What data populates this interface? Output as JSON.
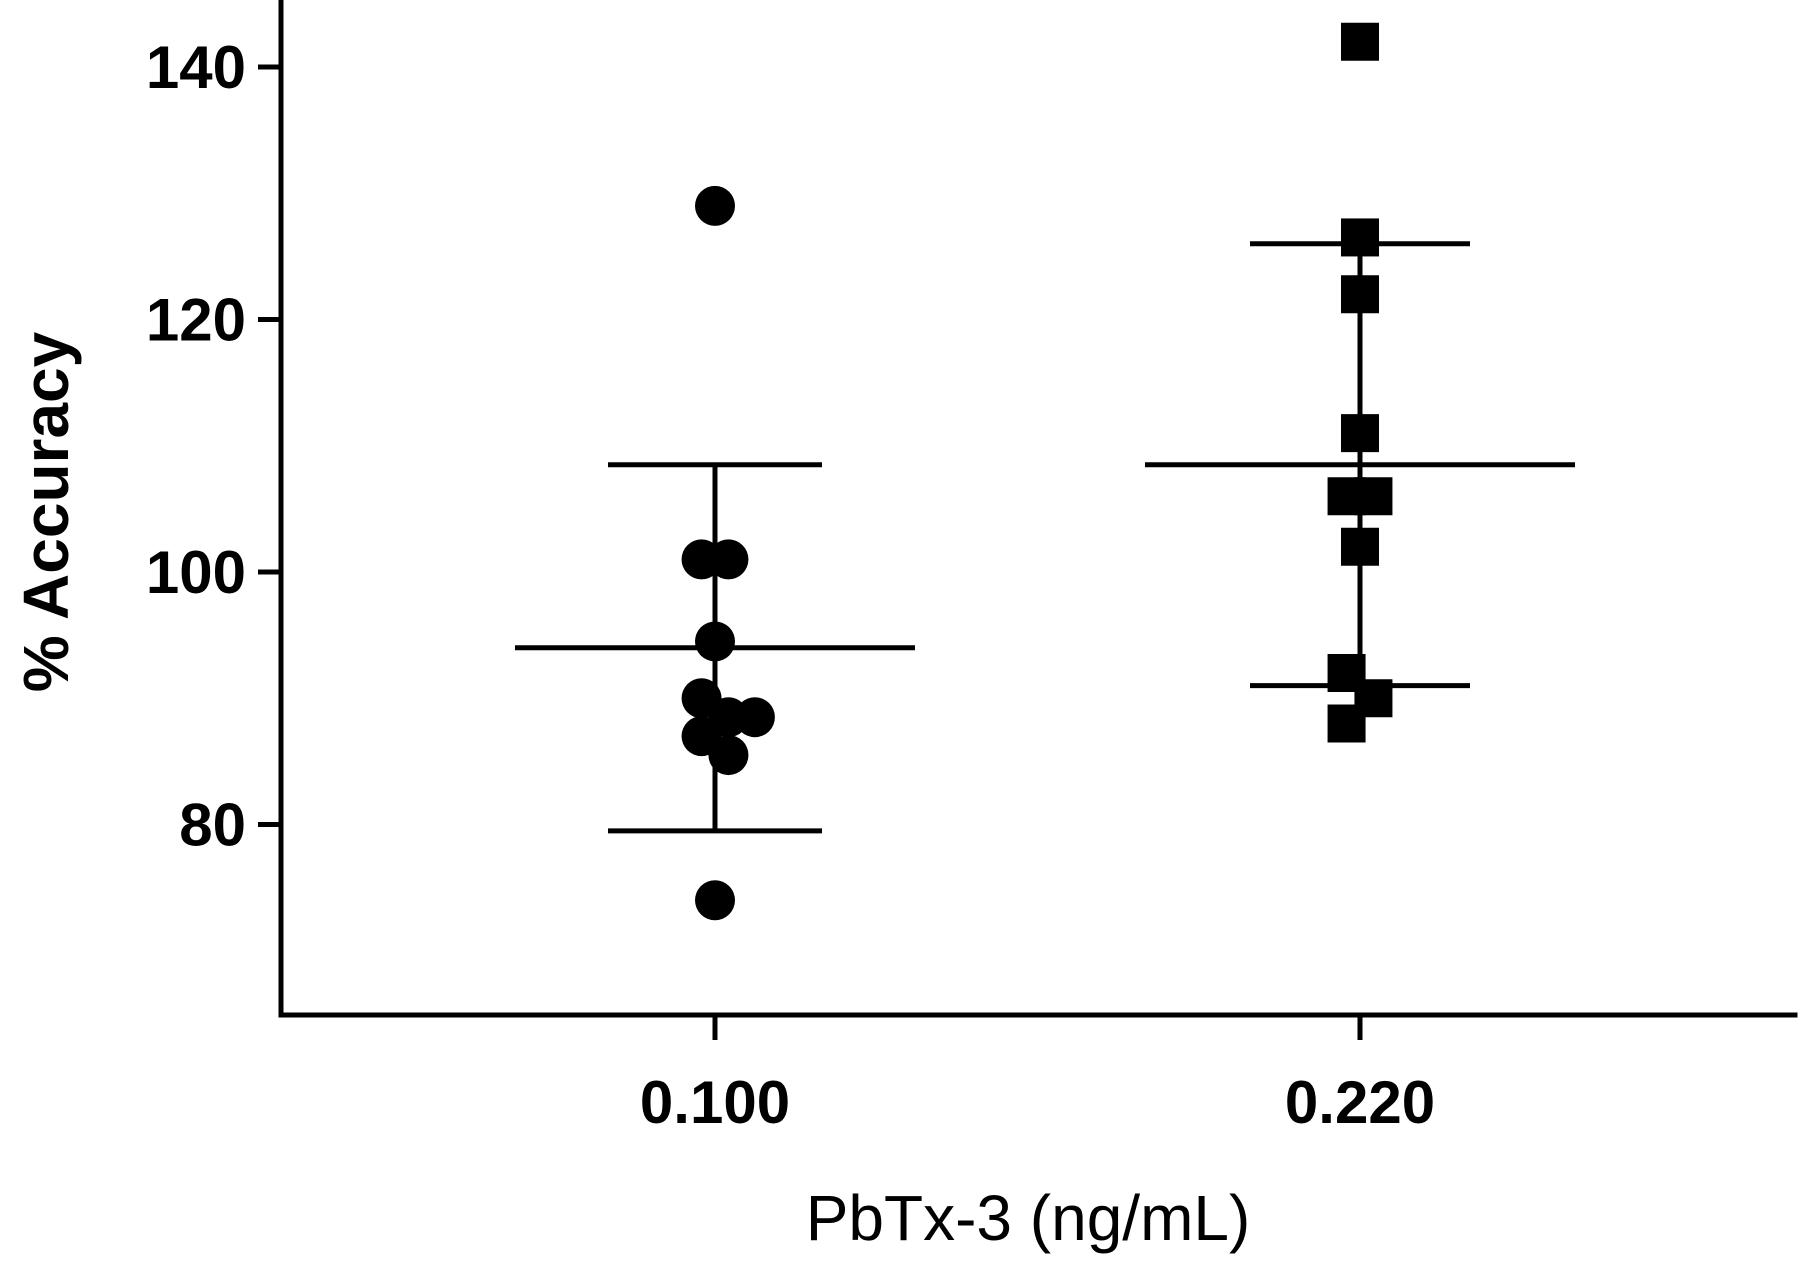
{
  "chart_data": {
    "type": "scatter",
    "title": "",
    "xlabel": "PbTx-3 (ng/mL)",
    "ylabel": "% Accuracy",
    "ylim": [
      65,
      145
    ],
    "yticks": [
      80,
      100,
      120,
      140
    ],
    "categories": [
      "0.100",
      "0.220"
    ],
    "grid": false,
    "groups": [
      {
        "category": "0.100",
        "marker": "circle",
        "points": [
          {
            "offset": 0.0,
            "y": 129
          },
          {
            "offset": -0.32,
            "y": 101
          },
          {
            "offset": 0.32,
            "y": 101
          },
          {
            "offset": 0.0,
            "y": 94.5
          },
          {
            "offset": -0.32,
            "y": 90
          },
          {
            "offset": -0.32,
            "y": 87
          },
          {
            "offset": 0.32,
            "y": 88.5
          },
          {
            "offset": 0.95,
            "y": 88.5
          },
          {
            "offset": 0.32,
            "y": 85.5
          },
          {
            "offset": 0.0,
            "y": 74
          }
        ],
        "mean": 94,
        "sd_upper": 108.5,
        "sd_lower": 79.5
      },
      {
        "category": "0.220",
        "marker": "square",
        "points": [
          {
            "offset": 0.0,
            "y": 142
          },
          {
            "offset": 0.0,
            "y": 126.5
          },
          {
            "offset": 0.0,
            "y": 122
          },
          {
            "offset": 0.0,
            "y": 111
          },
          {
            "offset": -0.32,
            "y": 106
          },
          {
            "offset": 0.32,
            "y": 106
          },
          {
            "offset": 0.0,
            "y": 102
          },
          {
            "offset": -0.32,
            "y": 92
          },
          {
            "offset": 0.32,
            "y": 90
          },
          {
            "offset": -0.32,
            "y": 88
          }
        ],
        "mean": 108.5,
        "sd_upper": 126,
        "sd_lower": 91
      }
    ]
  }
}
